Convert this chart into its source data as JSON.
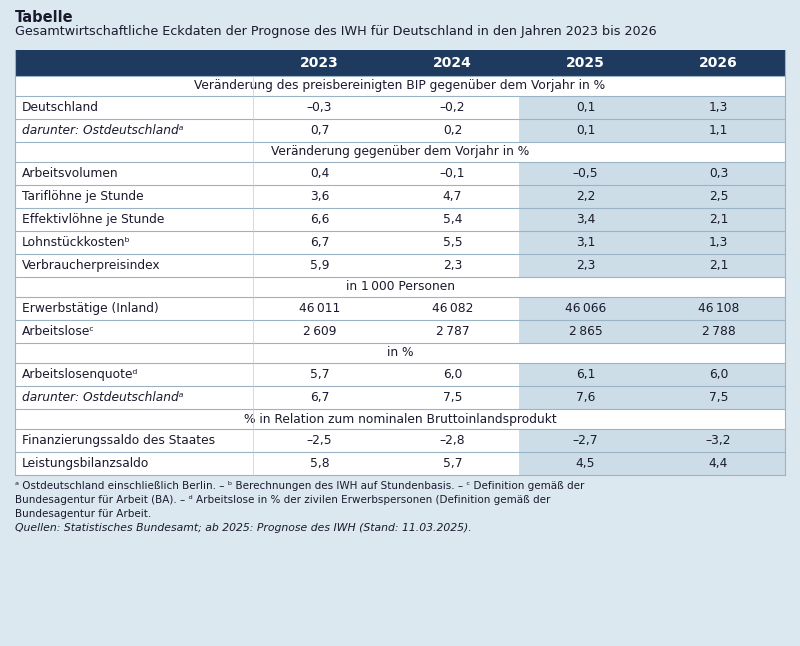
{
  "title_bold": "Tabelle",
  "title_sub": "Gesamtwirtschaftliche Eckdaten der Prognose des IWH für Deutschland in den Jahren 2023 bis 2026",
  "header_years": [
    "2023",
    "2024",
    "2025",
    "2026"
  ],
  "header_bg": "#1e3a5f",
  "header_fg": "#ffffff",
  "highlight_bg": "#ccdde8",
  "normal_bg": "#ffffff",
  "outer_bg": "#dce8f0",
  "sections": [
    {
      "section_label": "Veränderung des preisbereinigten BIP gegenüber dem Vorjahr in %",
      "rows": [
        {
          "label": "Deutschland",
          "italic": false,
          "values": [
            "–0,3",
            "–0,2",
            "0,1",
            "1,3"
          ],
          "highlight": [
            false,
            false,
            true,
            true
          ]
        },
        {
          "label": "darunter: Ostdeutschlandᵃ",
          "italic": true,
          "values": [
            "0,7",
            "0,2",
            "0,1",
            "1,1"
          ],
          "highlight": [
            false,
            false,
            true,
            true
          ]
        }
      ]
    },
    {
      "section_label": "Veränderung gegenüber dem Vorjahr in %",
      "rows": [
        {
          "label": "Arbeitsvolumen",
          "italic": false,
          "values": [
            "0,4",
            "–0,1",
            "–0,5",
            "0,3"
          ],
          "highlight": [
            false,
            false,
            true,
            true
          ]
        },
        {
          "label": "Tariflöhne je Stunde",
          "italic": false,
          "values": [
            "3,6",
            "4,7",
            "2,2",
            "2,5"
          ],
          "highlight": [
            false,
            false,
            true,
            true
          ]
        },
        {
          "label": "Effektivlöhne je Stunde",
          "italic": false,
          "values": [
            "6,6",
            "5,4",
            "3,4",
            "2,1"
          ],
          "highlight": [
            false,
            false,
            true,
            true
          ]
        },
        {
          "label": "Lohnstückkostenᵇ",
          "italic": false,
          "values": [
            "6,7",
            "5,5",
            "3,1",
            "1,3"
          ],
          "highlight": [
            false,
            false,
            true,
            true
          ]
        },
        {
          "label": "Verbraucherpreisindex",
          "italic": false,
          "values": [
            "5,9",
            "2,3",
            "2,3",
            "2,1"
          ],
          "highlight": [
            false,
            false,
            true,
            true
          ]
        }
      ]
    },
    {
      "section_label": "in 1 000 Personen",
      "rows": [
        {
          "label": "Erwerbstätige (Inland)",
          "italic": false,
          "values": [
            "46 011",
            "46 082",
            "46 066",
            "46 108"
          ],
          "highlight": [
            false,
            false,
            true,
            true
          ]
        },
        {
          "label": "Arbeitsloseᶜ",
          "italic": false,
          "values": [
            "2 609",
            "2 787",
            "2 865",
            "2 788"
          ],
          "highlight": [
            false,
            false,
            true,
            true
          ]
        }
      ]
    },
    {
      "section_label": "in %",
      "rows": [
        {
          "label": "Arbeitslosenquoteᵈ",
          "italic": false,
          "values": [
            "5,7",
            "6,0",
            "6,1",
            "6,0"
          ],
          "highlight": [
            false,
            false,
            true,
            true
          ]
        },
        {
          "label": "darunter: Ostdeutschlandᵃ",
          "italic": true,
          "values": [
            "6,7",
            "7,5",
            "7,6",
            "7,5"
          ],
          "highlight": [
            false,
            false,
            true,
            true
          ]
        }
      ]
    },
    {
      "section_label": "% in Relation zum nominalen Bruttoinlandsprodukt",
      "rows": [
        {
          "label": "Finanzierungssaldo des Staates",
          "italic": false,
          "values": [
            "–2,5",
            "–2,8",
            "–2,7",
            "–3,2"
          ],
          "highlight": [
            false,
            false,
            true,
            true
          ]
        },
        {
          "label": "Leistungsbilanzsaldo",
          "italic": false,
          "values": [
            "5,8",
            "5,7",
            "4,5",
            "4,4"
          ],
          "highlight": [
            false,
            false,
            true,
            true
          ]
        }
      ]
    }
  ],
  "footnote_lines": [
    "ᵃ Ostdeutschland einschließlich Berlin. – ᵇ Berechnungen des IWH auf Stundenbasis. – ᶜ Definition gemäß der Bundesagentur für Arbeit (BA). – ᵈ Arbeitslose in % der zivilen Erwerbspersonen (Definition gemäß der Bundesagentur für Arbeit."
  ],
  "sources": "Quellen: Statistisches Bundesamt; ab 2025: Prognose des IWH (Stand: 11.03.2025)."
}
